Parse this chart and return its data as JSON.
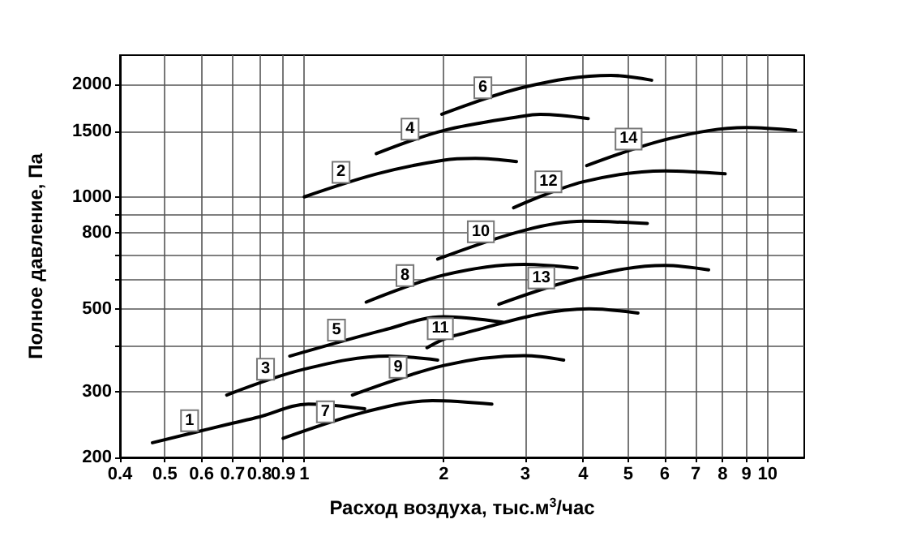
{
  "chart_data": {
    "type": "line",
    "xlabel": "Расход воздуха, тыс.м$^{3}$/час",
    "ylabel": "Полное давление, Па",
    "log": "xy",
    "grid": true,
    "legend": false,
    "marker": "none",
    "line_style": "solid",
    "xlim": [
      0.4,
      12
    ],
    "xticks": [
      0.4,
      0.5,
      0.6,
      0.7,
      0.8,
      0.9,
      1,
      2,
      3,
      4,
      5,
      6,
      7,
      8,
      9,
      10
    ],
    "ylim": [
      200,
      2400
    ],
    "yticks": [
      200,
      300,
      {
        "value": 400,
        "label": null
      },
      500,
      {
        "value": 600,
        "label": null
      },
      {
        "value": 700,
        "label": null
      },
      800,
      {
        "value": 900,
        "label": null
      },
      1000,
      1500,
      2000
    ],
    "series": [
      {
        "name": "1",
        "color": "#000000",
        "x": [
          0.47,
          0.68,
          0.8,
          1.02,
          1.35
        ],
        "values": [
          219,
          245,
          257,
          278,
          270
        ]
      },
      {
        "name": "2",
        "color": "#000000",
        "x": [
          1.0,
          1.44,
          2.0,
          2.34,
          2.87
        ],
        "values": [
          1000,
          1154,
          1255,
          1268,
          1243
        ]
      },
      {
        "name": "3",
        "color": "#000000",
        "x": [
          0.68,
          1.0,
          1.52,
          1.94
        ],
        "values": [
          294,
          345,
          374,
          365
        ]
      },
      {
        "name": "4",
        "color": "#000000",
        "x": [
          1.43,
          2.0,
          2.98,
          3.23,
          4.1
        ],
        "values": [
          1306,
          1507,
          1649,
          1664,
          1622
        ]
      },
      {
        "name": "5",
        "color": "#000000",
        "x": [
          0.93,
          1.48,
          2.0,
          2.68
        ],
        "values": [
          374,
          439,
          477,
          461
        ]
      },
      {
        "name": "6",
        "color": "#000000",
        "x": [
          1.98,
          2.98,
          4.59,
          5.62
        ],
        "values": [
          1666,
          1969,
          2118,
          2056
        ]
      },
      {
        "name": "7",
        "color": "#000000",
        "x": [
          0.9,
          1.37,
          1.89,
          2.54
        ],
        "values": [
          225,
          266,
          284,
          278
        ]
      },
      {
        "name": "8",
        "color": "#000000",
        "x": [
          1.36,
          2.0,
          2.98,
          3.88
        ],
        "values": [
          522,
          617,
          659,
          644
        ]
      },
      {
        "name": "9",
        "color": "#000000",
        "x": [
          1.27,
          2.0,
          2.98,
          3.63
        ],
        "values": [
          294,
          353,
          375,
          365
        ]
      },
      {
        "name": "10",
        "color": "#000000",
        "x": [
          1.94,
          2.98,
          4.0,
          5.5
        ],
        "values": [
          681,
          813,
          860,
          849
        ]
      },
      {
        "name": "11",
        "color": "#000000",
        "x": [
          1.84,
          2.1,
          4.12,
          5.25
        ],
        "values": [
          394,
          424,
          501,
          488
        ]
      },
      {
        "name": "12",
        "color": "#000000",
        "x": [
          2.83,
          4.0,
          6.0,
          8.1
        ],
        "values": [
          935,
          1098,
          1174,
          1153
        ]
      },
      {
        "name": "13",
        "color": "#000000",
        "x": [
          2.63,
          4.01,
          6.0,
          7.46
        ],
        "values": [
          515,
          608,
          655,
          637
        ]
      },
      {
        "name": "14",
        "color": "#000000",
        "x": [
          4.07,
          6.17,
          9.0,
          11.5
        ],
        "values": [
          1213,
          1435,
          1534,
          1507
        ]
      }
    ]
  }
}
